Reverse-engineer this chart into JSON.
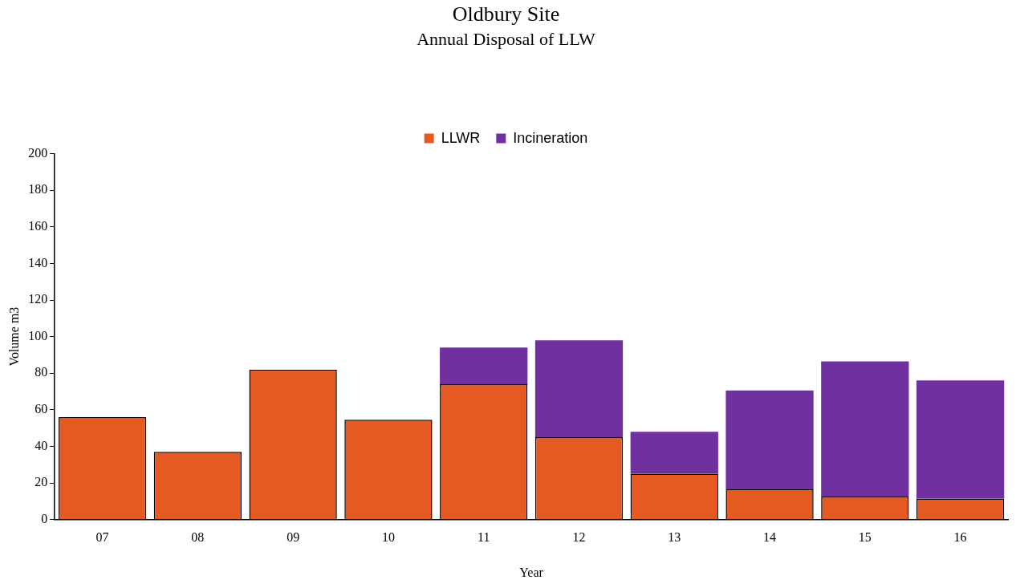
{
  "chart_data": {
    "type": "bar",
    "title": "Oldbury Site",
    "subtitle": "Annual Disposal of LLW",
    "xlabel": "Year",
    "ylabel": "Volume m3",
    "categories": [
      "07",
      "08",
      "09",
      "10",
      "11",
      "12",
      "13",
      "14",
      "15",
      "16"
    ],
    "stacked": true,
    "series": [
      {
        "name": "LLWR",
        "color": "#e55a22",
        "values": [
          56,
          37,
          82,
          54.5,
          74,
          45,
          25,
          16.5,
          12.5,
          11.5
        ]
      },
      {
        "name": "Incineration",
        "color": "#7030a0",
        "values": [
          0,
          0,
          0,
          0,
          20,
          53,
          23,
          54,
          74,
          64.5
        ]
      }
    ],
    "ylim": [
      0,
      200
    ],
    "yticks": [
      0,
      20,
      40,
      60,
      80,
      100,
      120,
      140,
      160,
      180,
      200
    ],
    "grid": false,
    "legend": "top"
  }
}
